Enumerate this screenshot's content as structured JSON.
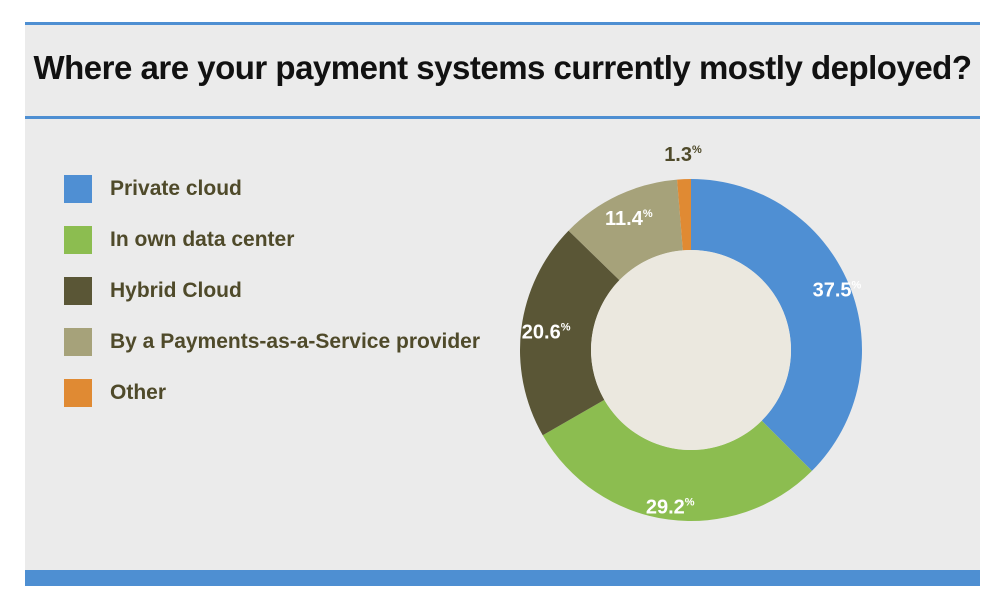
{
  "chart_data": {
    "type": "pie",
    "variant": "donut",
    "title": "Where are your payment systems currently mostly deployed?",
    "categories": [
      "Private cloud",
      "In own data center",
      "Hybrid Cloud",
      "By a Payments-as-a-Service provider",
      "Other"
    ],
    "values": [
      37.5,
      29.2,
      20.6,
      11.4,
      1.3
    ],
    "labels": [
      "37.5",
      "29.2",
      "20.6",
      "11.4",
      "1.3"
    ],
    "unit": "%",
    "colors": [
      "#4f8fd3",
      "#8cbd50",
      "#5a5636",
      "#a6a27a",
      "#e08a33"
    ],
    "label_colors": [
      "#ffffff",
      "#ffffff",
      "#ffffff",
      "#ffffff",
      "#4f4a2a"
    ],
    "legend_position": "left"
  }
}
